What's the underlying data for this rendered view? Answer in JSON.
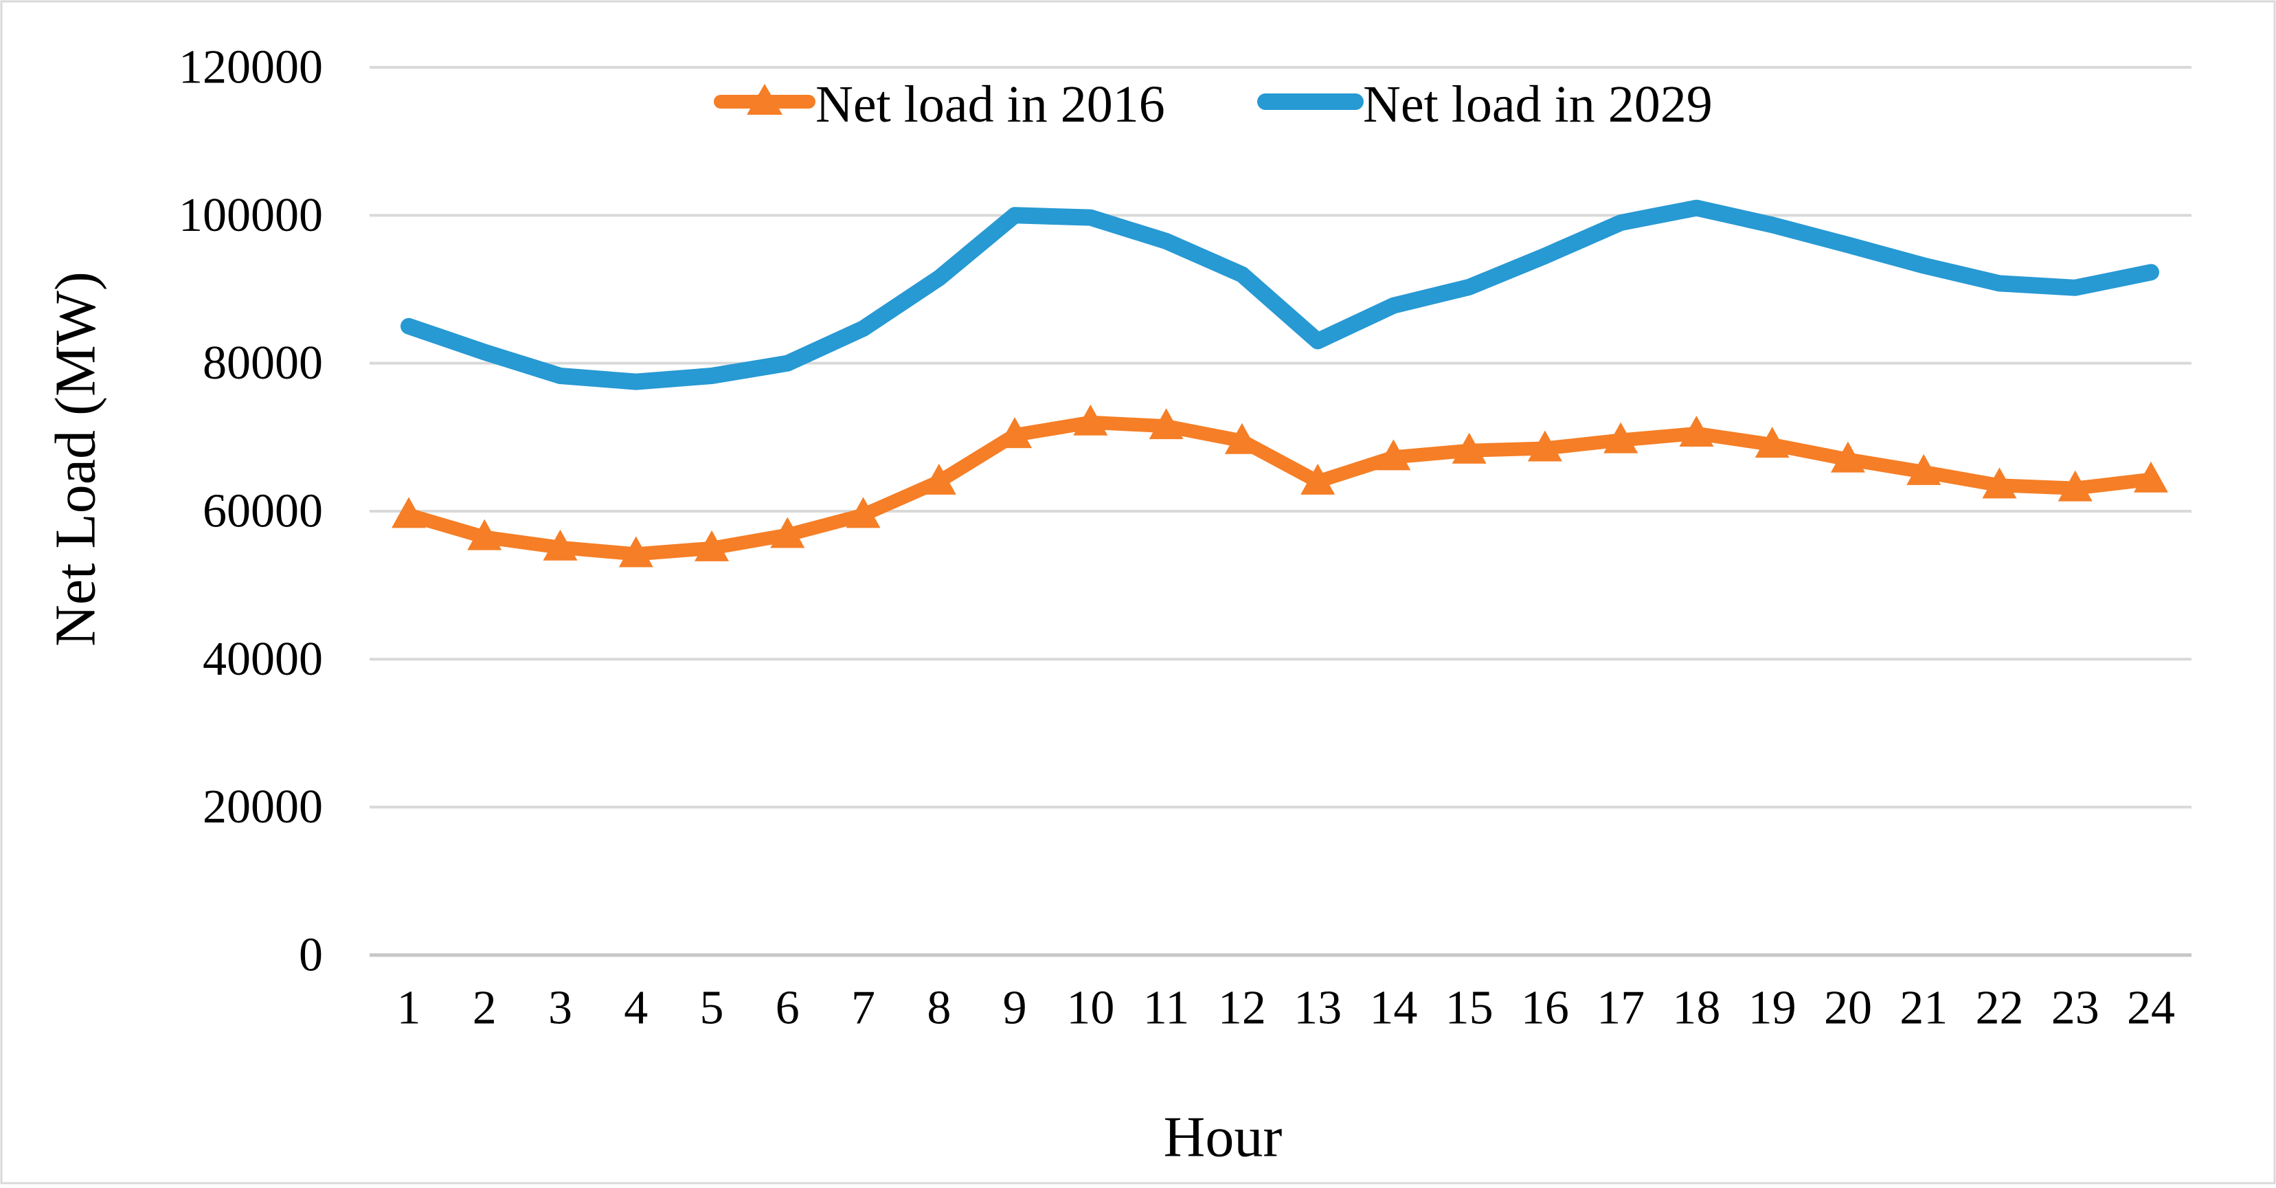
{
  "figure": {
    "background": "#ffffff",
    "border_color": "#d9d9d9",
    "gridline_color": "#d9d9d9",
    "axis_line_color": "#c6c6c6",
    "text_color": "#000000"
  },
  "legend": {
    "items": [
      {
        "label": "Net load in 2016",
        "color": "#f57e26",
        "marker": "triangle-line"
      },
      {
        "label": "Net load in 2029",
        "color": "#2799d3",
        "marker": "line"
      }
    ]
  },
  "chart_data": {
    "type": "line",
    "title": "",
    "xlabel": "Hour",
    "ylabel": "Net Load (MW)",
    "x": [
      1,
      2,
      3,
      4,
      5,
      6,
      7,
      8,
      9,
      10,
      11,
      12,
      13,
      14,
      15,
      16,
      17,
      18,
      19,
      20,
      21,
      22,
      23,
      24
    ],
    "series": [
      {
        "name": "Net load in 2016",
        "color": "#f57e26",
        "marker": "triangle",
        "line_width": 20,
        "values": [
          59500,
          56500,
          55100,
          54200,
          55000,
          56800,
          59500,
          64000,
          70300,
          72000,
          71500,
          69500,
          64000,
          67300,
          68200,
          68500,
          69600,
          70500,
          69000,
          67000,
          65300,
          63500,
          63100,
          64300
        ]
      },
      {
        "name": "Net load in 2029",
        "color": "#2799d3",
        "marker": "none",
        "line_width": 24,
        "values": [
          85000,
          81500,
          78300,
          77500,
          78300,
          80000,
          84700,
          91500,
          100000,
          99700,
          96500,
          92000,
          83000,
          87800,
          90300,
          94500,
          99000,
          101000,
          98700,
          96000,
          93200,
          90800,
          90200,
          92300
        ]
      }
    ],
    "ylim": [
      0,
      120000
    ],
    "yticks": [
      0,
      20000,
      40000,
      60000,
      80000,
      100000,
      120000
    ],
    "grid": true,
    "legend_position": "top-center"
  }
}
